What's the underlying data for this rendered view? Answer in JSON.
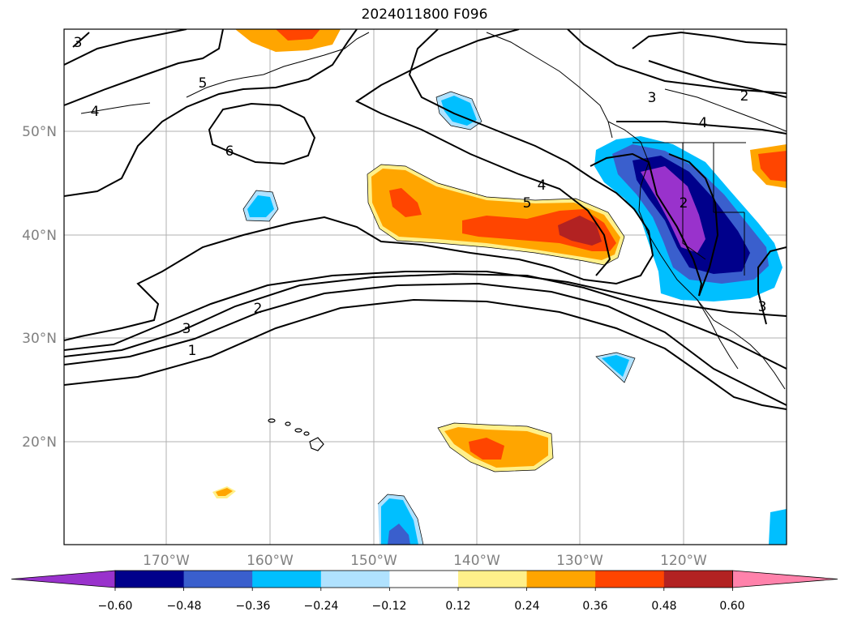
{
  "title": "2024011800 F096",
  "map": {
    "lat_labels": [
      "50°N",
      "40°N",
      "30°N",
      "20°N"
    ],
    "lon_labels": [
      "170°W",
      "160°W",
      "150°W",
      "140°W",
      "130°W",
      "120°W"
    ],
    "contour_labels": [
      "3",
      "5",
      "4",
      "6",
      "4",
      "5",
      "3",
      "2",
      "4",
      "2",
      "3",
      "2",
      "1",
      "3"
    ]
  },
  "colorbar": {
    "ticks": [
      "−0.60",
      "−0.48",
      "−0.36",
      "−0.24",
      "−0.12",
      "0.12",
      "0.24",
      "0.36",
      "0.48",
      "0.60"
    ],
    "colors": [
      "#9932cc",
      "#00008b",
      "#3a5fcd",
      "#00bfff",
      "#b0e2ff",
      "#ffffff",
      "#fff08a",
      "#ffa500",
      "#ff4500",
      "#b22222",
      "#ff82ab"
    ]
  }
}
